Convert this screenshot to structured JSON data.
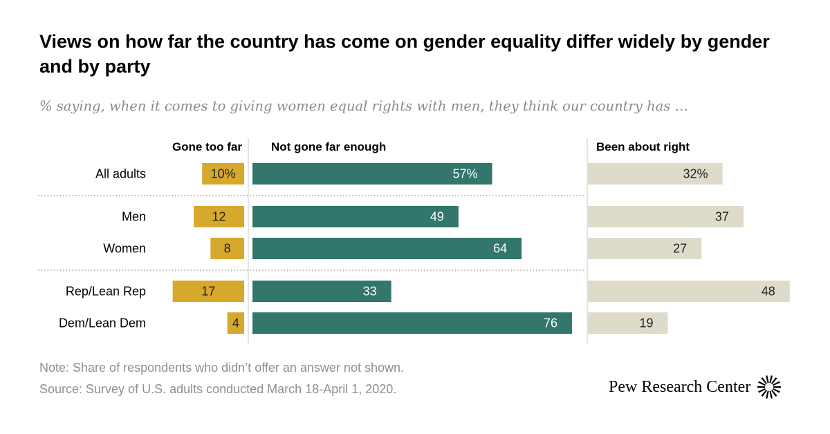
{
  "title": "Views on how far the country has come on gender equality differ widely by gender and by party",
  "subtitle": "% saying, when it comes to giving women equal rights with men, they think our country has …",
  "note": "Note: Share of respondents who didn’t offer an answer not shown.",
  "source": "Source: Survey of U.S. adults conducted March 18-April 1, 2020.",
  "logo_text": "Pew Research Center",
  "logo_icon": "pew-sunburst-icon",
  "colors": {
    "gone_too_far": "#d6a82c",
    "not_gone_far_enough": "#33766b",
    "been_about_right": "#dedbcb"
  },
  "chart_data": {
    "type": "bar",
    "orientation": "horizontal",
    "categories": [
      "All adults",
      "Men",
      "Women",
      "Rep/Lean Rep",
      "Dem/Lean Dem"
    ],
    "groups": [
      [
        "All adults"
      ],
      [
        "Men",
        "Women"
      ],
      [
        "Rep/Lean Rep",
        "Dem/Lean Dem"
      ]
    ],
    "series": [
      {
        "name": "Gone too far",
        "values": [
          10,
          12,
          8,
          17,
          4
        ],
        "labels": [
          "10%",
          "12",
          "8",
          "17",
          "4"
        ]
      },
      {
        "name": "Not gone far enough",
        "values": [
          57,
          49,
          64,
          33,
          76
        ],
        "labels": [
          "57%",
          "49",
          "64",
          "33",
          "76"
        ]
      },
      {
        "name": "Been about right",
        "values": [
          32,
          37,
          27,
          48,
          19
        ],
        "labels": [
          "32%",
          "37",
          "27",
          "48",
          "19"
        ]
      }
    ]
  }
}
